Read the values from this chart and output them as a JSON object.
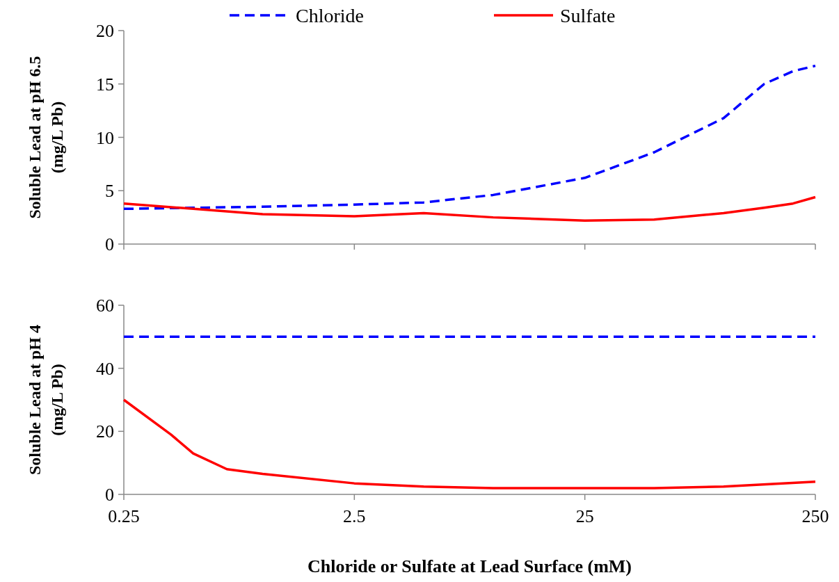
{
  "chart_data": [
    {
      "type": "line",
      "ylabel": "Soluble Lead at pH 6.5\n(mg/L Pb)",
      "log": "x",
      "xlim": [
        0.25,
        250
      ],
      "xticks": [
        0.25,
        2.5,
        25,
        250
      ],
      "ylim": [
        0,
        20
      ],
      "yticks": [
        0,
        5,
        10,
        15,
        20
      ],
      "tick_labels": "y",
      "legend": "top",
      "grid": false,
      "series": [
        {
          "name": "Chloride",
          "color": "#0000ff",
          "line_style": "dashed",
          "x": [
            0.25,
            0.5,
            1,
            2.5,
            5,
            10,
            25,
            50,
            100,
            150,
            200,
            250
          ],
          "values": [
            3.3,
            3.4,
            3.5,
            3.7,
            3.9,
            4.6,
            6.2,
            8.6,
            11.8,
            15,
            16.2,
            16.7
          ]
        },
        {
          "name": "Sulfate",
          "color": "#ff0000",
          "line_style": "solid",
          "x": [
            0.25,
            0.5,
            1,
            2.5,
            5,
            10,
            25,
            50,
            100,
            150,
            200,
            250
          ],
          "values": [
            3.8,
            3.3,
            2.8,
            2.6,
            2.9,
            2.5,
            2.2,
            2.3,
            2.9,
            3.4,
            3.8,
            4.4
          ]
        }
      ]
    },
    {
      "type": "line",
      "ylabel": "Soluble Lead at pH 4\n(mg/L Pb)",
      "xlabel": "Chloride or Sulfate at Lead Surface (mM)",
      "log": "x",
      "xlim": [
        0.25,
        250
      ],
      "xticks": [
        0.25,
        2.5,
        25,
        250
      ],
      "ylim": [
        0,
        60
      ],
      "yticks": [
        0,
        20,
        40,
        60
      ],
      "grid": false,
      "series": [
        {
          "color": "#0000ff",
          "line_style": "dashed",
          "x": [
            0.25,
            2.5,
            25,
            250
          ],
          "values": [
            50,
            50,
            50,
            50
          ]
        },
        {
          "color": "#ff0000",
          "line_style": "solid",
          "x": [
            0.25,
            0.4,
            0.5,
            0.7,
            1,
            2.5,
            5,
            10,
            25,
            50,
            100,
            250
          ],
          "values": [
            30,
            19,
            13,
            8,
            6.5,
            3.5,
            2.5,
            2,
            2,
            2,
            2.5,
            4
          ]
        }
      ]
    }
  ]
}
